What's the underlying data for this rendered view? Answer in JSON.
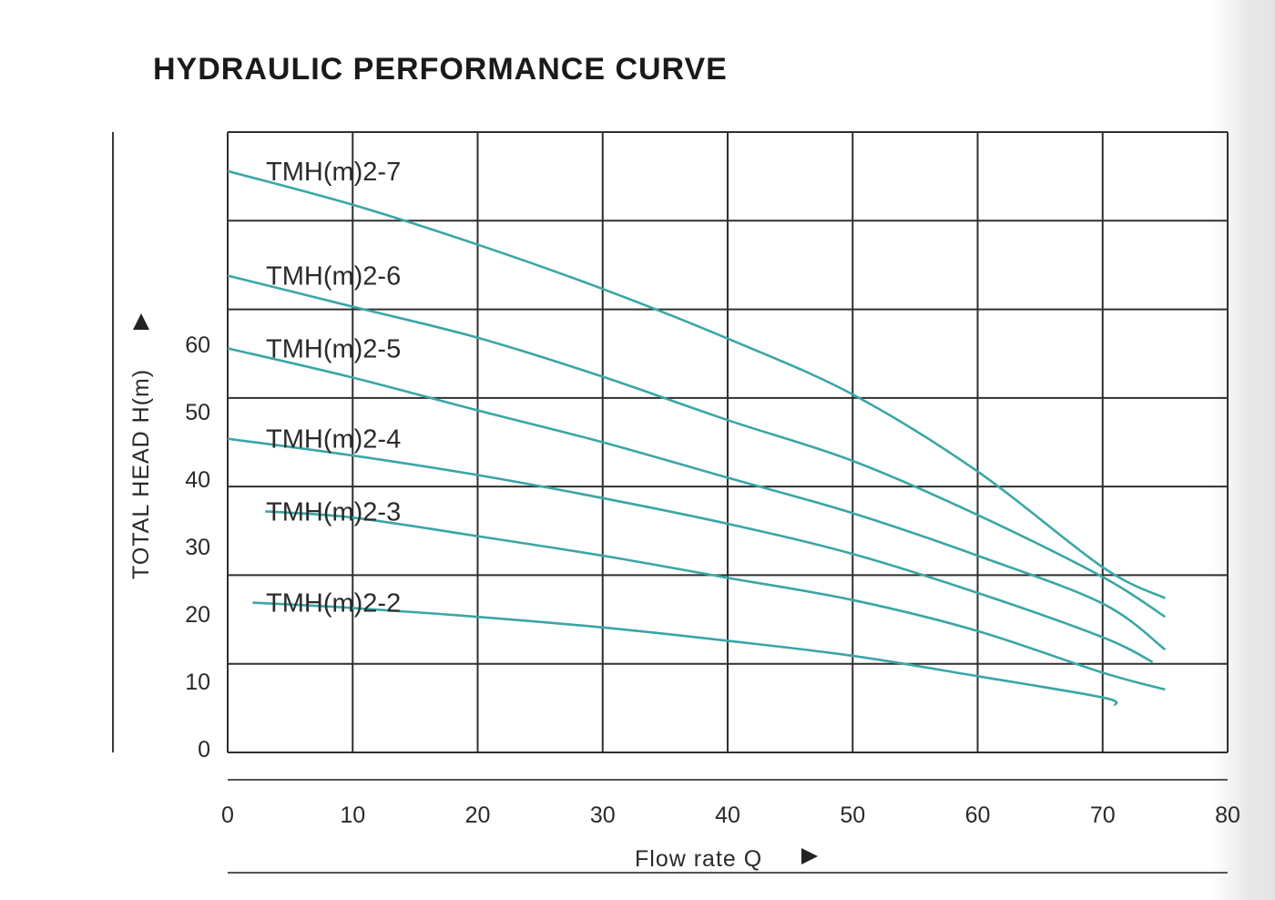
{
  "chart_data": {
    "type": "line",
    "title": "HYDRAULIC PERFORMANCE CURVE",
    "xlabel": "Flow rate  Q",
    "ylabel": "TOTAL HEAD H(m)",
    "xlim": [
      0,
      80
    ],
    "ylim": [
      0,
      70
    ],
    "x_ticks": [
      "0",
      "10",
      "20",
      "30",
      "40",
      "50",
      "60",
      "70",
      "80"
    ],
    "y_ticks": [
      "0",
      "10",
      "20",
      "30",
      "40",
      "50",
      "60"
    ],
    "grid": true,
    "line_color": "#3aa6a6",
    "series": [
      {
        "name": "TMH(m)2-7",
        "x": [
          0,
          10,
          20,
          30,
          40,
          50,
          60,
          70,
          75
        ],
        "y": [
          65.6,
          61.8,
          57.3,
          52.3,
          46.7,
          40.4,
          31.7,
          20.9,
          17.4
        ]
      },
      {
        "name": "TMH(m)2-6",
        "x": [
          0,
          10,
          20,
          30,
          40,
          50,
          60,
          70,
          75
        ],
        "y": [
          53.8,
          50.3,
          46.8,
          42.4,
          37.5,
          32.9,
          26.8,
          19.8,
          15.3
        ]
      },
      {
        "name": "TMH(m)2-5",
        "x": [
          0,
          10,
          20,
          30,
          40,
          50,
          60,
          70,
          75
        ],
        "y": [
          45.6,
          42.3,
          38.6,
          35.0,
          31.0,
          27.0,
          22.2,
          16.8,
          11.6
        ]
      },
      {
        "name": "TMH(m)2-4",
        "x": [
          0,
          10,
          20,
          30,
          40,
          50,
          60,
          70,
          74
        ],
        "y": [
          35.4,
          33.5,
          31.3,
          28.7,
          25.8,
          22.4,
          18.0,
          13.0,
          10.2
        ]
      },
      {
        "name": "TMH(m)2-3",
        "x": [
          3,
          10,
          20,
          30,
          40,
          50,
          60,
          70,
          75
        ],
        "y": [
          27.2,
          26.5,
          24.4,
          22.2,
          19.7,
          17.2,
          13.7,
          9.0,
          7.1
        ]
      },
      {
        "name": "TMH(m)2-2",
        "x": [
          2,
          10,
          20,
          30,
          40,
          50,
          60,
          70,
          71
        ],
        "y": [
          16.9,
          16.3,
          15.3,
          14.1,
          12.6,
          10.9,
          8.6,
          6.2,
          5.3
        ]
      }
    ]
  }
}
